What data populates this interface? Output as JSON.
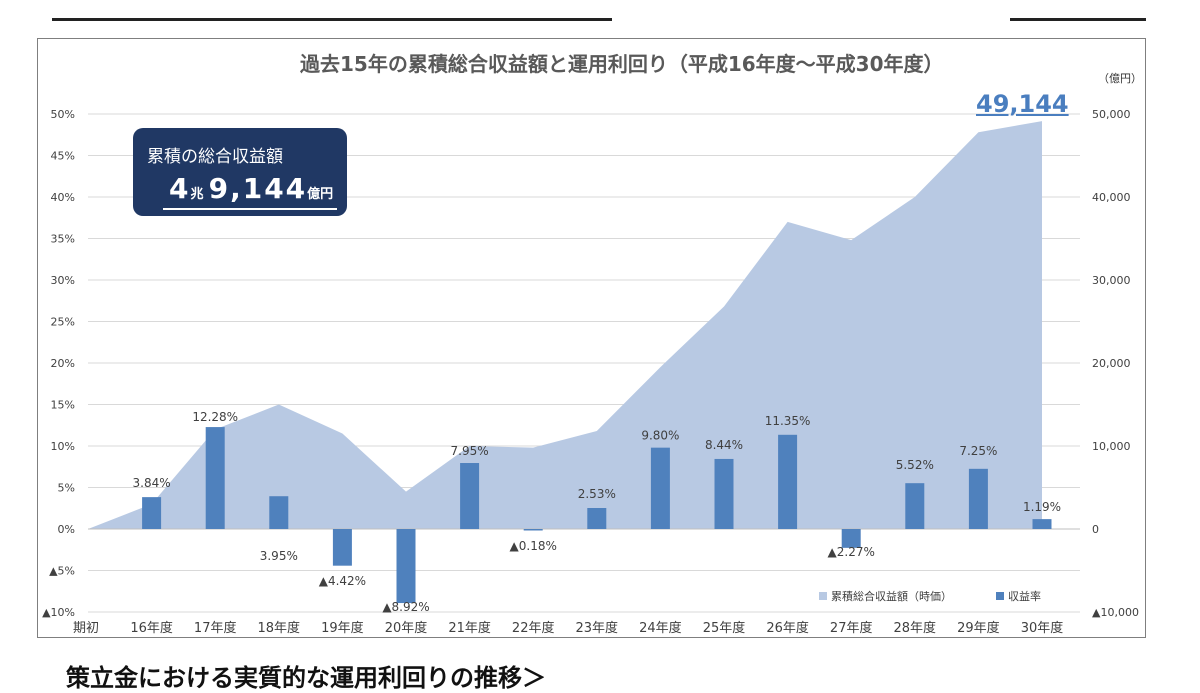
{
  "header": {
    "unit": "（億円）",
    "callout_value": "49,144"
  },
  "box": {
    "line1": "累積の総合収益額",
    "value_big": "4",
    "value_small": "兆",
    "value_big2": "9,144",
    "value_unit": "億円"
  },
  "footer": {
    "text": "策立金における実質的な運用利回りの推移＞"
  },
  "chart_data": {
    "type": "bar+area",
    "title": "過去15年の累積総合収益額と運用利回り（平成16年度～平成30年度）",
    "categories": [
      "期初",
      "16年度",
      "17年度",
      "18年度",
      "19年度",
      "20年度",
      "21年度",
      "22年度",
      "23年度",
      "24年度",
      "25年度",
      "26年度",
      "27年度",
      "28年度",
      "29年度",
      "30年度"
    ],
    "series": [
      {
        "name": "累積総合収益額（時価）",
        "type": "area",
        "axis": "right",
        "values": [
          0,
          3000,
          12000,
          15000,
          11500,
          4500,
          10000,
          9800,
          11800,
          19500,
          26800,
          37000,
          34800,
          40000,
          47800,
          49144
        ]
      },
      {
        "name": "収益率",
        "type": "bar",
        "axis": "left",
        "values": [
          null,
          3.84,
          12.28,
          3.95,
          -4.42,
          -8.92,
          7.95,
          -0.18,
          2.53,
          9.8,
          8.44,
          11.35,
          -2.27,
          5.52,
          7.25,
          1.19
        ],
        "labels": [
          "",
          "3.84%",
          "12.28%",
          "3.95%",
          "▲4.42%",
          "▲8.92%",
          "7.95%",
          "▲0.18%",
          "2.53%",
          "9.80%",
          "8.44%",
          "11.35%",
          "▲2.27%",
          "5.52%",
          "7.25%",
          "1.19%"
        ]
      }
    ],
    "left_axis": {
      "ylim": [
        -10,
        50
      ],
      "ticks": [
        50,
        45,
        40,
        35,
        30,
        25,
        20,
        15,
        10,
        5,
        0,
        -5,
        -10
      ],
      "tick_labels": [
        "50%",
        "45%",
        "40%",
        "35%",
        "30%",
        "25%",
        "20%",
        "15%",
        "10%",
        "5%",
        "0%",
        "▲5%",
        "▲10%"
      ]
    },
    "right_axis": {
      "ylim": [
        -10000,
        50000
      ],
      "ticks": [
        50000,
        40000,
        30000,
        20000,
        10000,
        0,
        -10000
      ],
      "tick_labels": [
        "50,000",
        "40,000",
        "30,000",
        "20,000",
        "10,000",
        "0",
        "▲10,000"
      ]
    },
    "legend": [
      "累積総合収益額（時価）",
      "収益率"
    ],
    "legend_position": "bottom-right",
    "colors": {
      "area": "#b8c9e3",
      "bar": "#4f81bd"
    },
    "grid": true
  }
}
